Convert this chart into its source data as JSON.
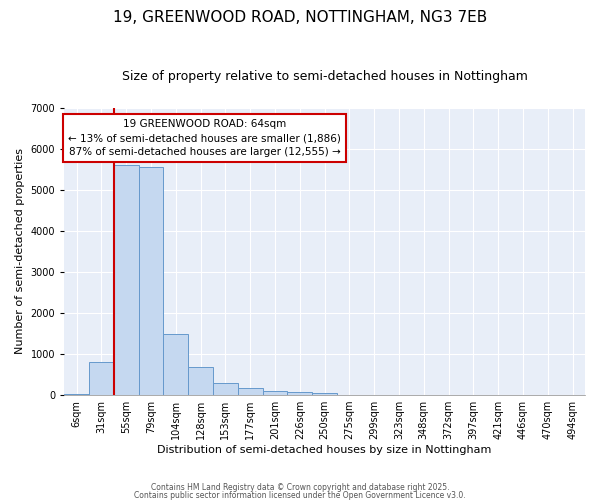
{
  "title": "19, GREENWOOD ROAD, NOTTINGHAM, NG3 7EB",
  "subtitle": "Size of property relative to semi-detached houses in Nottingham",
  "xlabel": "Distribution of semi-detached houses by size in Nottingham",
  "ylabel": "Number of semi-detached properties",
  "bins": [
    "6sqm",
    "31sqm",
    "55sqm",
    "79sqm",
    "104sqm",
    "128sqm",
    "153sqm",
    "177sqm",
    "201sqm",
    "226sqm",
    "250sqm",
    "275sqm",
    "299sqm",
    "323sqm",
    "348sqm",
    "372sqm",
    "397sqm",
    "421sqm",
    "446sqm",
    "470sqm",
    "494sqm"
  ],
  "values": [
    30,
    800,
    5600,
    5550,
    1500,
    680,
    290,
    165,
    110,
    70,
    45,
    5,
    0,
    0,
    0,
    0,
    0,
    0,
    0,
    0,
    0
  ],
  "bar_color": "#c5d8f0",
  "bar_edge_color": "#6699cc",
  "red_line_color": "#cc0000",
  "red_line_bin": 2,
  "annotation_box_facecolor": "#ffffff",
  "annotation_box_edgecolor": "#cc0000",
  "annotation_label": "19 GREENWOOD ROAD: 64sqm",
  "annotation_smaller": "← 13% of semi-detached houses are smaller (1,886)",
  "annotation_larger": "87% of semi-detached houses are larger (12,555) →",
  "fig_facecolor": "#ffffff",
  "plot_facecolor": "#e8eef8",
  "grid_color": "#ffffff",
  "ylim": [
    0,
    7000
  ],
  "yticks": [
    0,
    1000,
    2000,
    3000,
    4000,
    5000,
    6000,
    7000
  ],
  "title_fontsize": 11,
  "subtitle_fontsize": 9,
  "axis_label_fontsize": 8,
  "tick_fontsize": 7,
  "footer1": "Contains HM Land Registry data © Crown copyright and database right 2025.",
  "footer2": "Contains public sector information licensed under the Open Government Licence v3.0."
}
